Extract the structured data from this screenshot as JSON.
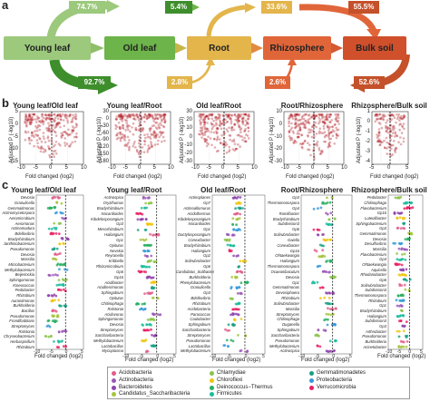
{
  "panel_a": {
    "letter": "a",
    "nodes": [
      {
        "label": "Young leaf",
        "color": "#9cc97c"
      },
      {
        "label": "Old leaf",
        "color": "#6db44a"
      },
      {
        "label": "Root",
        "color": "#e3b54b"
      },
      {
        "label": "Rhizosphere",
        "color": "#e0663a"
      },
      {
        "label": "Bulk soil",
        "color": "#d0502c"
      }
    ],
    "top_pcts": [
      "74.7%",
      "5.4%",
      "33.6%",
      "55.5%"
    ],
    "bottom_pcts": [
      "92.7%",
      "2.8%",
      "2.6%",
      "52.6%"
    ]
  },
  "panel_b": {
    "letter": "b",
    "titles": [
      "Young leaf/Old leaf",
      "Young leaf/Root",
      "Old leaf/Root",
      "Root/Rhizosphere",
      "Rhizosphere/Bulk soil"
    ],
    "ylabel": "Adjusted P (-log10)",
    "xlabel": "Fold changed (log2)",
    "yticks": [
      [
        "5",
        "0",
        "-5",
        "-10",
        "-15"
      ],
      [
        "30",
        "0",
        "-30",
        "-60",
        "-90",
        "-120",
        "-150",
        "-180"
      ],
      [
        "30",
        "20",
        "10",
        "0",
        "-10",
        "-20",
        "-30"
      ],
      [
        "10",
        "0",
        "-10",
        "-20",
        "-30"
      ],
      [
        "1",
        "0",
        "-1",
        "-2",
        "-3",
        "-4"
      ]
    ],
    "xticks": [
      "-10",
      "-5",
      "0",
      "5",
      "10"
    ],
    "xticks_short": [
      "-5",
      "0",
      "5"
    ]
  },
  "panel_c": {
    "letter": "c",
    "titles": [
      "Young leaf/Old leaf",
      "Young leaf/Root",
      "Old leaf/Root",
      "Root/Rhizosphere",
      "Rhizosphere/Bulk soil"
    ],
    "xlabel": "Fold changed (log2)",
    "xticks": [
      "-10",
      "-5",
      "0",
      "5"
    ],
    "genera": [
      [
        "Devosia",
        "Granulicella",
        "Gemmatimonas",
        "Actinomycetospora",
        "Aeromicrobium",
        "Aeromonas",
        "Actinomadura",
        "Bdellovibrio",
        "Bradyrhizobium",
        "Janthinobacterium",
        "Pseudomonas",
        "Devosia",
        "Massilia",
        "Microbacterium",
        "Methylobacterium",
        "Beijerinckia",
        "Sphingomonas",
        "Kineococcus",
        "Pedobacter",
        "Rhizobium",
        "Aurantimonas",
        "Burkholderia",
        "Bacillus",
        "Pseudomonas",
        "Frondihabitans",
        "Streptomyces",
        "Ralstonia",
        "Chryseobacterium",
        "Herbaspirillum",
        "Rhizobium"
      ],
      [
        "Actinospica",
        "Oryzihumus",
        "Bradyrhizobium",
        "Nocardioides",
        "Kibdelosporangium",
        "Gp3",
        "Mesorhizobium",
        "Haliangium",
        "Gp1",
        "Opitutus",
        "Nevskia",
        "Reyranella",
        "Kribbella",
        "Rhizomicrobium",
        "Gp6",
        "Gp16",
        "Acidibacter",
        "Aciditerrimonas",
        "Sphingobium",
        "Opitutus",
        "Chitinophaga",
        "Ralstonia",
        "Acidovorax",
        "Sphingomonas",
        "Devosia",
        "Streptomyces",
        "Saccharibacteria",
        "Methylobacterium",
        "Lactobacillus",
        "Mycoplasma"
      ],
      [
        "Actinoplanes",
        "Gp7",
        "Actinoallomurus",
        "Acidothermus",
        "Kibdelosporangium",
        "Nocardioides",
        "Gp1",
        "Dactylosporangium",
        "Conexibacter",
        "Bradyrhizobium",
        "Haliangium",
        "Gp2",
        "Solirubrobacter",
        "Gp6",
        "Candidatus_Solibacter",
        "Burkholderia",
        "Phenylobacterium",
        "Granulicella",
        "Gp3",
        "Bdellovibrio",
        "Rhizobium",
        "Acidobacteria",
        "Paracoccus",
        "Caulobacter",
        "Sphingobium",
        "Saccharibacteria",
        "Streptomyces",
        "Pseudomonas",
        "Lactobacillus",
        "Methylobacterium"
      ],
      [
        "Gp3",
        "Thermomonospora",
        "Gp4",
        "Ramlibacter",
        "Bradyrhizobium",
        "Subdivision3",
        "Gp6",
        "Solirubrobacter",
        "Gaiella",
        "Conexibacter",
        "Gp16",
        "Ohtaekwangia",
        "Haliangium",
        "Thermomonospora",
        "Ocaeanibaculum",
        "Devosia",
        "Gp1",
        "Gemmatimonas",
        "Devosiphaera",
        "Rhizobium",
        "Solirubrobacter",
        "Massilia",
        "Streptomyces",
        "Chitinophaga",
        "Duganella",
        "Sphingobium",
        "Saccharibacteria",
        "Pseudomonas",
        "Methylobacterium",
        "Actinospica"
      ],
      [
        "Pedobacter",
        "Chitinophaga",
        "Flavobacterium",
        "Gp16",
        "Luteolibacter",
        "Sphingobacterium",
        "Gp3",
        "Gemmatimonas",
        "Devosia",
        "Desulfovibrio",
        "Massilia",
        "Flavobacterium",
        "Gp4",
        "Ohtaekwangia",
        "Aquicella",
        "Rhodanobacter",
        "Gp6",
        "Solirubrobacter",
        "Subdivision3",
        "Thermomonospora",
        "Rhizobium",
        "Gp1",
        "Bradyrhizobium",
        "Haliangium",
        "Subdivision3",
        "Gp3",
        "Arthrobacter",
        "Pseudomonas",
        "Burkholderia",
        "Acinetobacter"
      ]
    ]
  },
  "legend": {
    "items": [
      {
        "name": "Acidobacteria",
        "color": "#e05c8a"
      },
      {
        "name": "Actinobacteria",
        "color": "#9b59b6"
      },
      {
        "name": "Bacteroidetes",
        "color": "#8e44ad"
      },
      {
        "name": "Candidatus_Saccharibacteria",
        "color": "#a4c43c"
      },
      {
        "name": "Chlamydiae",
        "color": "#8bc34a"
      },
      {
        "name": "Chloroflexi",
        "color": "#f1c40f"
      },
      {
        "name": "Deinococcus−Thermus",
        "color": "#27ae60"
      },
      {
        "name": "Firmicutes",
        "color": "#1abc9c"
      },
      {
        "name": "Gemmatimonadetes",
        "color": "#16a085"
      },
      {
        "name": "Proteobacteria",
        "color": "#3498db"
      },
      {
        "name": "Verrucomicrobia",
        "color": "#e91e63"
      }
    ]
  }
}
